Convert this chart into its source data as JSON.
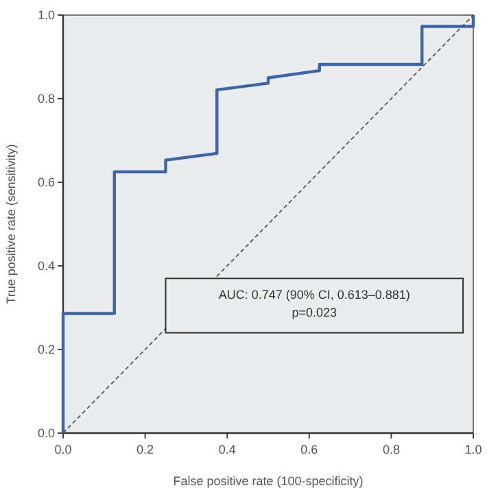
{
  "chart_data": {
    "type": "line",
    "xlabel": "False positive rate (100-specificity)",
    "ylabel": "True positive rate (sensitivity)",
    "xlim": [
      0,
      1
    ],
    "ylim": [
      0,
      1
    ],
    "xticks": [
      {
        "value": 0,
        "label": "0.0"
      },
      0.2,
      0.4,
      0.6,
      0.8,
      {
        "value": 1,
        "label": "1.0"
      }
    ],
    "yticks": [
      {
        "value": 0,
        "label": "0.0"
      },
      0.2,
      0.4,
      0.6,
      0.8,
      {
        "value": 1,
        "label": "1.0"
      }
    ],
    "grid": false,
    "series": [
      {
        "color": "#3d65ab",
        "line_style": "solid",
        "x": [
          0,
          0,
          0.125,
          0.125,
          0.25,
          0.25,
          0.375,
          0.375,
          0.5,
          0.5,
          0.625,
          0.625,
          0.875,
          0.875,
          1,
          1
        ],
        "values": [
          0,
          0.286,
          0.286,
          0.625,
          0.625,
          0.653,
          0.669,
          0.821,
          0.837,
          0.85,
          0.867,
          0.882,
          0.882,
          0.973,
          0.973,
          1
        ]
      },
      {
        "color": "#555555",
        "line_style": "dashed",
        "x": [
          0,
          1
        ],
        "values": [
          0,
          1
        ]
      }
    ],
    "annotations": [
      "AUC: 0.747 (90% CI, 0.613–0.881)",
      "p=0.023"
    ]
  }
}
